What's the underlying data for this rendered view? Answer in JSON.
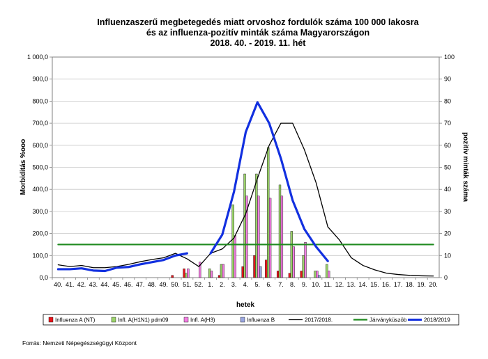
{
  "chart_data": {
    "type": "bar",
    "title_lines": [
      "Influenzaszerű megbetegedés miatt orvoshoz fordulók száma 100 000 lakosra",
      "és az influenza-pozitív minták száma Magyarországon",
      "2018. 40. - 2019. 11. hét"
    ],
    "xlabel": "hetek",
    "ylabel_left": "Morbiditás %ooo",
    "ylabel_right": "pozitív minták száma",
    "ylim_left": [
      0,
      1000
    ],
    "ylim_right": [
      0,
      100
    ],
    "left_ticks": [
      "0,0",
      "100,0",
      "200,0",
      "300,0",
      "400,0",
      "500,0",
      "600,0",
      "700,0",
      "800,0",
      "900,0",
      "1 000,0"
    ],
    "right_ticks": [
      "0",
      "10",
      "20",
      "30",
      "40",
      "50",
      "60",
      "70",
      "80",
      "90",
      "100"
    ],
    "categories": [
      "40.",
      "41.",
      "42.",
      "43.",
      "44.",
      "45.",
      "46.",
      "47.",
      "48.",
      "49.",
      "50.",
      "51.",
      "52.",
      "1.",
      "2.",
      "3.",
      "4.",
      "5.",
      "6.",
      "7.",
      "8.",
      "9.",
      "10.",
      "11.",
      "12.",
      "13.",
      "14.",
      "15.",
      "16.",
      "17.",
      "18.",
      "19.",
      "20."
    ],
    "bar_series": [
      {
        "name": "Influenza A (NT)",
        "color": "#e8151b",
        "axis": "right",
        "values": [
          0,
          0,
          0,
          0,
          0,
          0,
          0,
          0,
          0,
          0,
          1,
          4,
          0,
          0,
          1,
          0,
          5,
          10,
          8,
          3,
          2,
          3,
          0,
          0,
          null,
          null,
          null,
          null,
          null,
          null,
          null,
          null,
          null
        ]
      },
      {
        "name": "Infl. A(H1N1) pdm09",
        "color": "#9bd36a",
        "axis": "right",
        "values": [
          0,
          0,
          0,
          0,
          0,
          0,
          0,
          0,
          0,
          0,
          0,
          2,
          0,
          4,
          6,
          33,
          47,
          47,
          59,
          42,
          21,
          10,
          3,
          6,
          null,
          null,
          null,
          null,
          null,
          null,
          null,
          null,
          null
        ]
      },
      {
        "name": "Infl. A(H3)",
        "color": "#f27ee2",
        "axis": "right",
        "values": [
          0,
          0,
          0,
          0,
          0,
          0,
          0,
          0,
          0,
          0,
          0,
          4,
          7,
          3,
          6,
          19,
          37,
          37,
          36,
          37,
          14,
          16,
          3,
          3,
          null,
          null,
          null,
          null,
          null,
          null,
          null,
          null,
          null
        ]
      },
      {
        "name": "Influenza B",
        "color": "#9aa6e0",
        "axis": "right",
        "values": [
          0,
          0,
          0,
          0,
          0,
          0,
          0,
          0,
          0,
          0,
          0,
          0,
          0,
          0,
          0,
          0,
          0,
          5,
          0,
          0,
          0,
          0,
          1,
          0,
          null,
          null,
          null,
          null,
          null,
          null,
          null,
          null,
          null
        ]
      }
    ],
    "line_series": [
      {
        "name": "2017/2018.",
        "color": "#000000",
        "axis": "left",
        "width": 1.3,
        "values": [
          58,
          50,
          55,
          45,
          45,
          50,
          60,
          72,
          82,
          90,
          110,
          85,
          50,
          110,
          130,
          180,
          290,
          450,
          600,
          700,
          700,
          580,
          430,
          230,
          170,
          90,
          55,
          35,
          20,
          14,
          10,
          8,
          7
        ]
      },
      {
        "name": "Járványküszöb",
        "color": "#1f8a1f",
        "axis": "left",
        "width": 2.2,
        "values": [
          150,
          150,
          150,
          150,
          150,
          150,
          150,
          150,
          150,
          150,
          150,
          150,
          150,
          150,
          150,
          150,
          150,
          150,
          150,
          150,
          150,
          150,
          150,
          150,
          150,
          150,
          150,
          150,
          150,
          150,
          150,
          150,
          150
        ]
      },
      {
        "name": "2018/2019",
        "color": "#1230e0",
        "axis": "left",
        "width": 3.2,
        "segments": [
          {
            "start": 0,
            "values": [
              38,
              38,
              42,
              32,
              30,
              45,
              48,
              60,
              70,
              80,
              100,
              110
            ]
          },
          {
            "start": 13,
            "values": [
              110,
              195,
              390,
              660,
              795,
              700,
              540,
              350,
              220,
              140,
              75
            ]
          }
        ]
      }
    ],
    "legend_position": "bottom",
    "grid": "horizontal"
  },
  "source_text": "Forrás: Nemzeti Népegészségügyi Központ"
}
